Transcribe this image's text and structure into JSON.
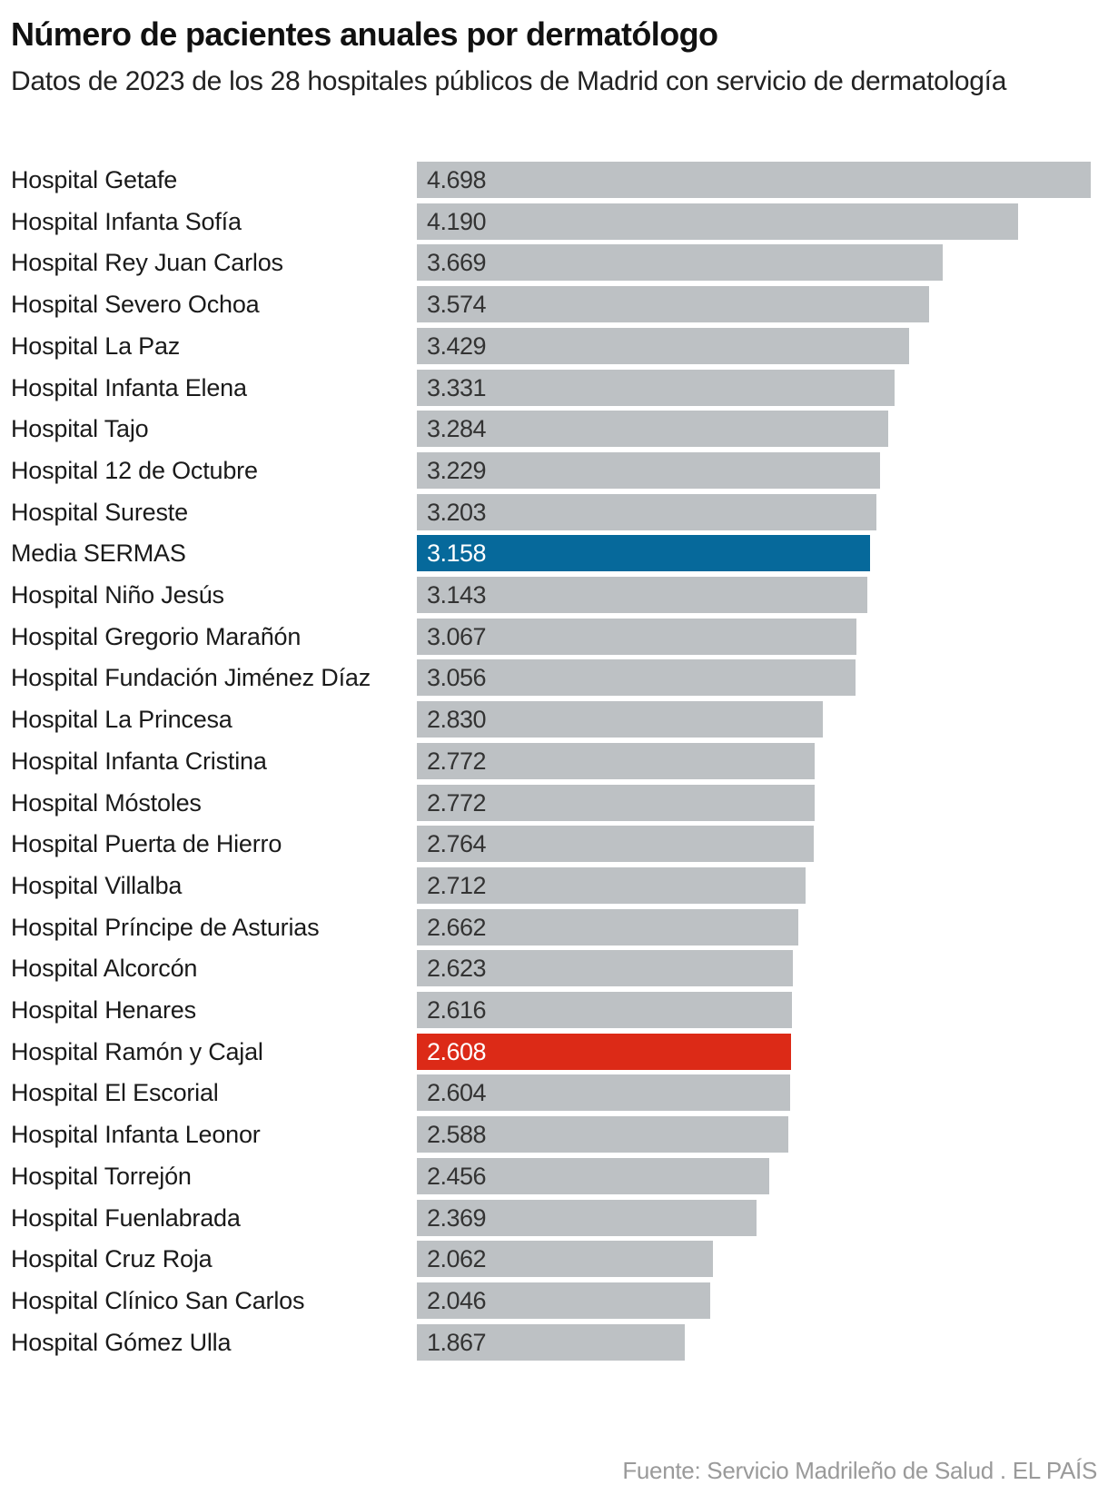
{
  "chart_data": {
    "type": "bar",
    "orientation": "horizontal",
    "title": "Número de pacientes anuales por dermatólogo",
    "subtitle": "Datos de 2023 de los 28 hospitales públicos de Madrid con servicio de dermatología",
    "xlabel": "",
    "ylabel": "",
    "xlim": [
      0,
      4698
    ],
    "grid": false,
    "legend": "none",
    "source": "Fuente: Servicio Madrileño de Salud . EL PAÍS",
    "colors": {
      "default": "#bdc1c4",
      "average": "#06699b",
      "highlight": "#dc2a17",
      "label_default": "#333333",
      "label_highlight": "#ffffff"
    },
    "categories": [
      "Hospital Getafe",
      "Hospital Infanta Sofía",
      "Hospital Rey Juan Carlos",
      "Hospital Severo Ochoa",
      "Hospital La Paz",
      "Hospital Infanta Elena",
      "Hospital Tajo",
      "Hospital 12 de Octubre",
      "Hospital Sureste",
      "Media SERMAS",
      "Hospital Niño Jesús",
      "Hospital Gregorio Marañón",
      "Hospital Fundación Jiménez Díaz",
      "Hospital La Princesa",
      "Hospital Infanta Cristina",
      "Hospital Móstoles",
      "Hospital Puerta de Hierro",
      "Hospital Villalba",
      "Hospital Príncipe de Asturias",
      "Hospital Alcorcón",
      "Hospital Henares",
      "Hospital Ramón y Cajal",
      "Hospital El Escorial",
      "Hospital Infanta Leonor",
      "Hospital Torrejón",
      "Hospital Fuenlabrada",
      "Hospital Cruz Roja",
      "Hospital Clínico San Carlos",
      "Hospital Gómez Ulla"
    ],
    "values": [
      4698,
      4190,
      3669,
      3574,
      3429,
      3331,
      3284,
      3229,
      3203,
      3158,
      3143,
      3067,
      3056,
      2830,
      2772,
      2772,
      2764,
      2712,
      2662,
      2623,
      2616,
      2608,
      2604,
      2588,
      2456,
      2369,
      2062,
      2046,
      1867
    ],
    "value_labels": [
      "4.698",
      "4.190",
      "3.669",
      "3.574",
      "3.429",
      "3.331",
      "3.284",
      "3.229",
      "3.203",
      "3.158",
      "3.143",
      "3.067",
      "3.056",
      "2.830",
      "2.772",
      "2.772",
      "2.764",
      "2.712",
      "2.662",
      "2.623",
      "2.616",
      "2.608",
      "2.604",
      "2.588",
      "2.456",
      "2.369",
      "2.062",
      "2.046",
      "1.867"
    ],
    "highlights": {
      "Media SERMAS": "average",
      "Hospital Ramón y Cajal": "highlight"
    }
  }
}
